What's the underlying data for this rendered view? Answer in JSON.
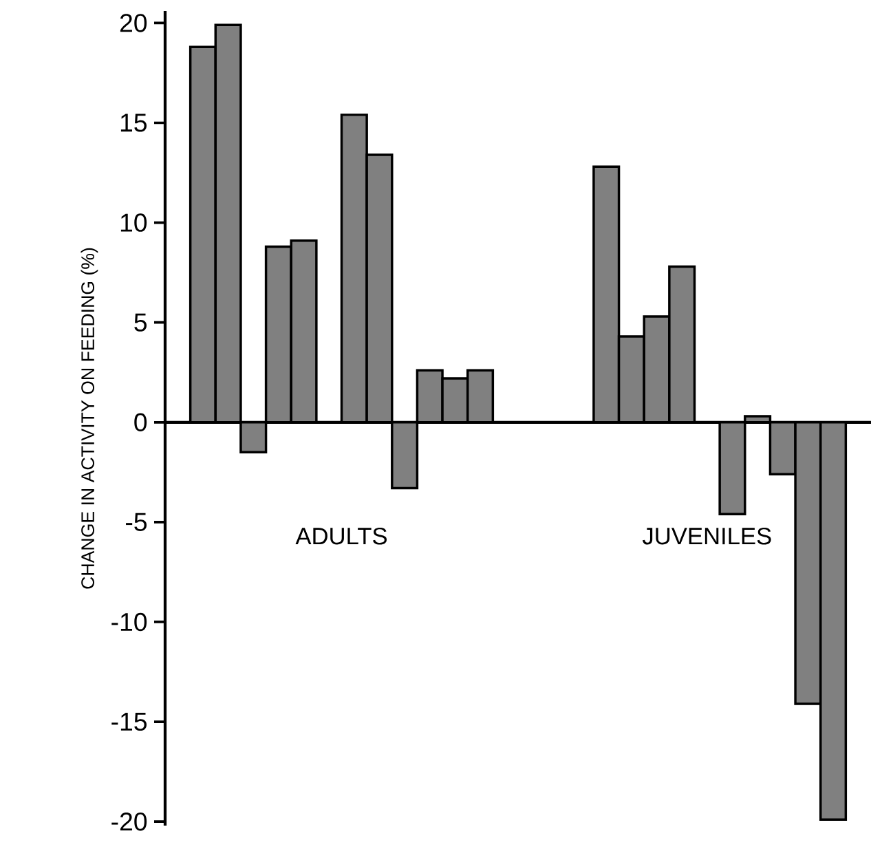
{
  "chart_data": {
    "type": "bar",
    "ylabel": "CHANGE IN ACTIVITY ON FEEDING (%)",
    "categories": [
      null,
      null,
      null,
      null,
      null,
      null,
      null,
      null,
      null,
      null,
      null,
      null,
      null,
      null,
      null,
      null,
      null,
      null,
      null,
      null,
      null,
      null,
      null,
      null,
      null,
      null,
      null,
      null
    ],
    "values": [
      null,
      18.8,
      19.9,
      -1.5,
      8.8,
      9.1,
      null,
      15.4,
      13.4,
      -3.3,
      2.6,
      2.2,
      2.6,
      null,
      null,
      null,
      null,
      12.8,
      4.3,
      5.3,
      7.8,
      null,
      -4.6,
      0.3,
      -2.6,
      -14.1,
      -19.9,
      null
    ],
    "color": "#808080",
    "ylim": [
      -20.2,
      20.6
    ],
    "yticks": [
      -20,
      -15,
      -10,
      -5,
      0,
      5,
      10,
      15,
      20
    ],
    "annotations": [
      "ADULTS",
      "JUVENILES"
    ]
  }
}
